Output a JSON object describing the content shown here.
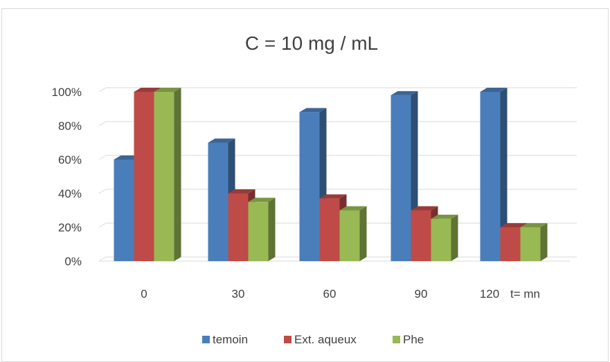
{
  "chart_data": {
    "type": "bar",
    "title": "C = 10 mg / mL",
    "categories": [
      "0",
      "30",
      "60",
      "90",
      "120"
    ],
    "x_note": "t= mn",
    "ytick_labels": [
      "0%",
      "20%",
      "40%",
      "60%",
      "80%",
      "100%"
    ],
    "ylim": [
      0,
      100
    ],
    "grid": true,
    "legend_position": "bottom",
    "bar_style": "3d",
    "series": [
      {
        "name": "temoin",
        "values": [
          60,
          70,
          88,
          98,
          100
        ],
        "color": "#4a7ebb"
      },
      {
        "name": "Ext. aqueux",
        "values": [
          100,
          40,
          37,
          30,
          20
        ],
        "color": "#be4b48"
      },
      {
        "name": "Phe",
        "values": [
          100,
          35,
          30,
          25,
          20
        ],
        "color": "#98b954"
      }
    ]
  }
}
